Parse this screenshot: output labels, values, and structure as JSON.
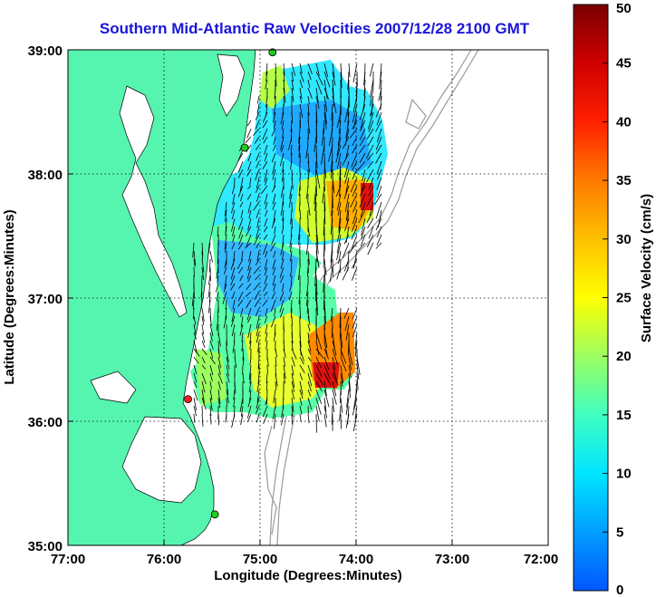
{
  "title": "Southern Mid-Atlantic Raw Velocities 2007/12/28 2100 GMT",
  "axes": {
    "xlabel": "Longitude (Degrees:Minutes)",
    "ylabel": "Latitude (Degrees:Minutes)",
    "x_ticks": [
      "77:00",
      "76:00",
      "75:00",
      "74:00",
      "73:00",
      "72:00"
    ],
    "y_ticks": [
      "39:00",
      "38:00",
      "37:00",
      "36:00",
      "35:00"
    ],
    "lon_range": [
      -77,
      -72
    ],
    "lat_range": [
      35,
      39
    ],
    "grid": "dotted"
  },
  "colorbar": {
    "label": "Surface Velocity (cm/s)",
    "ticks": [
      "0",
      "5",
      "10",
      "15",
      "20",
      "25",
      "30",
      "35",
      "40",
      "45",
      "50"
    ],
    "range": [
      0,
      50
    ]
  },
  "colors": {
    "title": "#1a16d8",
    "land": "#55f5b0",
    "bathymetry": "#9a9a9a",
    "station_active": "#22cc22",
    "station_inactive": "#ee2222"
  },
  "stations": [
    {
      "lon": -74.87,
      "lat": 38.98,
      "status": "active"
    },
    {
      "lon": -75.16,
      "lat": 38.21,
      "status": "active"
    },
    {
      "lon": -75.75,
      "lat": 36.18,
      "status": "inactive"
    },
    {
      "lon": -75.47,
      "lat": 35.25,
      "status": "active"
    }
  ]
}
